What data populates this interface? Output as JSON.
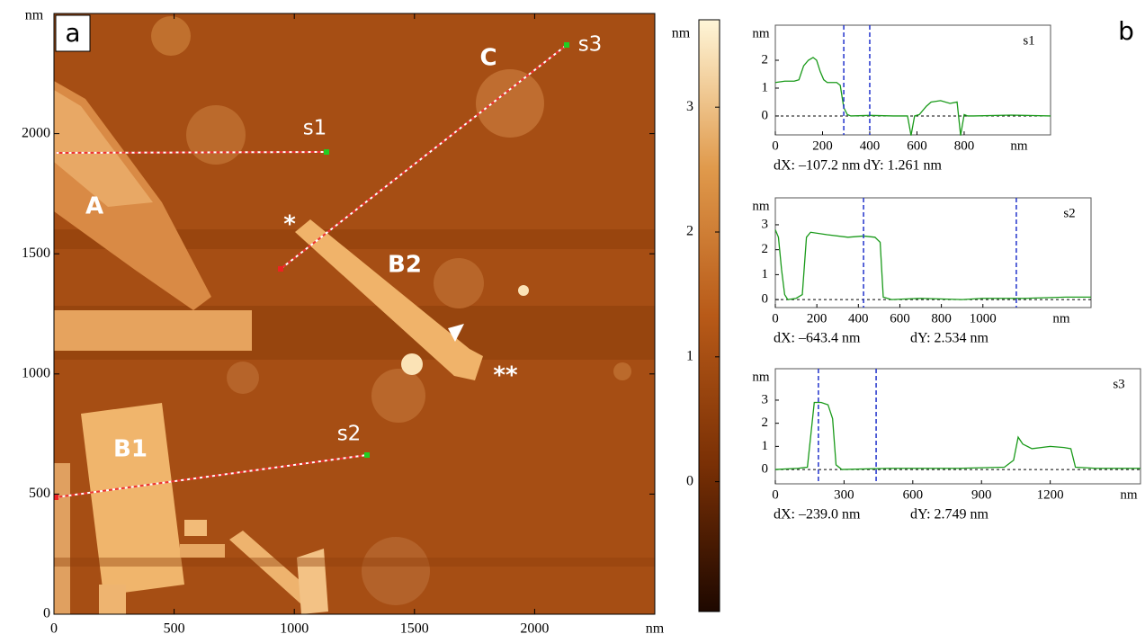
{
  "panels": {
    "a": "a",
    "b": "b"
  },
  "chart_data": [
    {
      "type": "image",
      "xlim": [
        0,
        2500
      ],
      "ylim": [
        0,
        2500
      ],
      "xticks": [
        0,
        500,
        1000,
        1500,
        2000
      ],
      "yticks": [
        0,
        500,
        1000,
        1500,
        2000
      ],
      "x_unit": "nm",
      "y_unit": "nm",
      "annotations": [
        "A",
        "B1",
        "B2",
        "C",
        "s1",
        "s2",
        "s3",
        "*",
        "**"
      ]
    },
    {
      "type": "colorbar",
      "ylim": [
        -1.04,
        3.7
      ],
      "yticks": [
        0,
        1,
        2,
        3
      ],
      "unit": "nm",
      "colors": [
        "#1e0800",
        "#7a3005",
        "#b85a18",
        "#e09a4c",
        "#fff6d8"
      ]
    },
    {
      "type": "line",
      "name": "s1",
      "xlim": [
        0,
        1166
      ],
      "ylim": [
        -0.68,
        3.26
      ],
      "xticks": [
        0,
        200,
        400,
        600,
        800
      ],
      "yticks": [
        0,
        1,
        2
      ],
      "x_unit": "nm",
      "y_unit": "nm",
      "x": [
        0,
        40,
        80,
        100,
        120,
        140,
        160,
        175,
        190,
        205,
        220,
        260,
        275,
        290,
        305,
        320,
        400,
        500,
        560,
        575,
        590,
        610,
        640,
        660,
        700,
        740,
        770,
        785,
        800,
        815,
        840,
        1000,
        1166
      ],
      "series": [
        {
          "color": "#1a9a1a",
          "values": [
            1.2,
            1.25,
            1.25,
            1.3,
            1.8,
            2.0,
            2.1,
            2.0,
            1.6,
            1.3,
            1.2,
            1.2,
            1.1,
            0.3,
            0.05,
            0,
            0.02,
            0,
            0,
            -0.7,
            0,
            0.05,
            0.35,
            0.5,
            0.55,
            0.45,
            0.5,
            -0.7,
            0.05,
            0,
            0,
            0.03,
            0
          ]
        }
      ],
      "cursors": [
        290,
        400
      ],
      "cursor_color": "#2233cc",
      "readout": [
        "dX: –107.2 nm",
        "dY: 1.261 nm"
      ]
    },
    {
      "type": "line",
      "name": "s2",
      "xlim": [
        0,
        1521
      ],
      "ylim": [
        -0.32,
        4.08
      ],
      "xticks": [
        0,
        200,
        400,
        600,
        800,
        1000
      ],
      "yticks": [
        0,
        1,
        2,
        3
      ],
      "x_unit": "nm",
      "y_unit": "nm",
      "x": [
        0,
        15,
        30,
        45,
        60,
        100,
        130,
        150,
        170,
        250,
        350,
        425,
        480,
        505,
        520,
        560,
        700,
        900,
        1000,
        1200,
        1400,
        1521
      ],
      "series": [
        {
          "color": "#1a9a1a",
          "values": [
            2.8,
            2.5,
            1.2,
            0.2,
            0,
            0.05,
            0.2,
            2.5,
            2.7,
            2.6,
            2.5,
            2.55,
            2.5,
            2.3,
            0.1,
            0,
            0.05,
            0,
            0.05,
            0.05,
            0.1,
            0.1
          ]
        }
      ],
      "cursors": [
        425,
        1161
      ],
      "cursor_color": "#2233cc",
      "readout": [
        "dX: –643.4 nm",
        "dY: 2.534 nm"
      ]
    },
    {
      "type": "line",
      "name": "s3",
      "xlim": [
        0,
        1594
      ],
      "ylim": [
        -0.62,
        4.36
      ],
      "xticks": [
        0,
        300,
        600,
        900,
        1200
      ],
      "yticks": [
        0,
        1,
        2,
        3
      ],
      "x_unit": "nm",
      "y_unit": "nm",
      "x": [
        0,
        100,
        140,
        155,
        170,
        200,
        230,
        250,
        265,
        290,
        500,
        800,
        1000,
        1040,
        1060,
        1080,
        1120,
        1200,
        1260,
        1290,
        1310,
        1400,
        1594
      ],
      "series": [
        {
          "color": "#1a9a1a",
          "values": [
            0,
            0.05,
            0.1,
            1.5,
            2.9,
            2.9,
            2.8,
            2.2,
            0.2,
            0,
            0.05,
            0.05,
            0.1,
            0.4,
            1.4,
            1.1,
            0.9,
            1.0,
            0.95,
            0.9,
            0.1,
            0.05,
            0.05
          ]
        }
      ],
      "cursors": [
        188,
        440
      ],
      "cursor_color": "#2233cc",
      "readout": [
        "dX: –239.0 nm",
        "dY: 2.749 nm"
      ]
    }
  ]
}
